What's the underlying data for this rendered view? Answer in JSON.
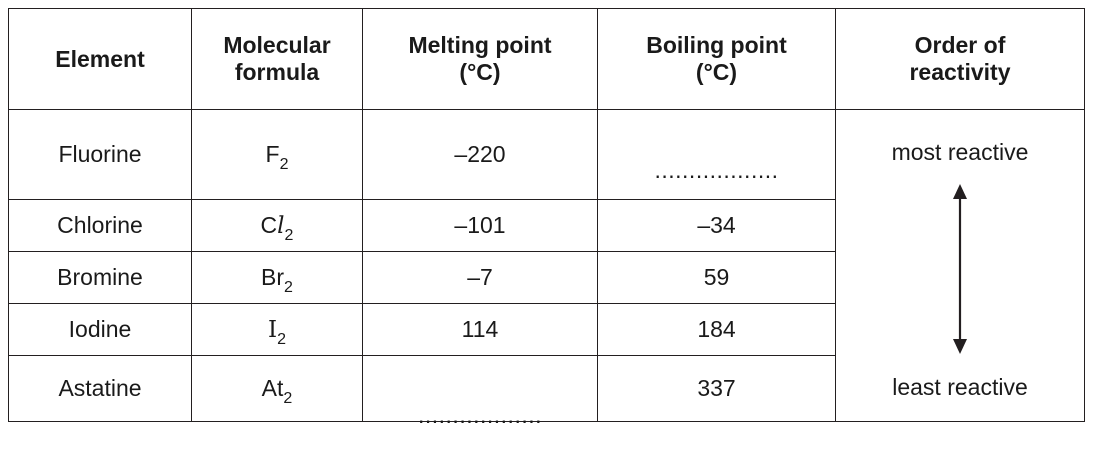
{
  "headers": {
    "element": "Element",
    "formula_line1": "Molecular",
    "formula_line2": "formula",
    "melting_line1": "Melting point",
    "melting_line2": "(°C)",
    "boiling_line1": "Boiling point",
    "boiling_line2": "(°C)",
    "reactivity_line1": "Order of",
    "reactivity_line2": "reactivity"
  },
  "rows": [
    {
      "element": "Fluorine",
      "formula_base": "F",
      "formula_sub": "2",
      "melting": "–220",
      "boiling": ".................."
    },
    {
      "element": "Chlorine",
      "formula_base": "C",
      "formula_ital": "l",
      "formula_sub": "2",
      "melting": "–101",
      "boiling": "–34"
    },
    {
      "element": "Bromine",
      "formula_base": "Br",
      "formula_sub": "2",
      "melting": "–7",
      "boiling": "59"
    },
    {
      "element": "Iodine",
      "formula_base": "I",
      "formula_sub": "2",
      "melting": "114",
      "boiling": "184"
    },
    {
      "element": "Astatine",
      "formula_base": "At",
      "formula_sub": "2",
      "melting": "..................",
      "boiling": "337"
    }
  ],
  "reactivity": {
    "top": "most reactive",
    "bottom": "least reactive",
    "arrow_icon": "double-headed-arrow-icon"
  }
}
